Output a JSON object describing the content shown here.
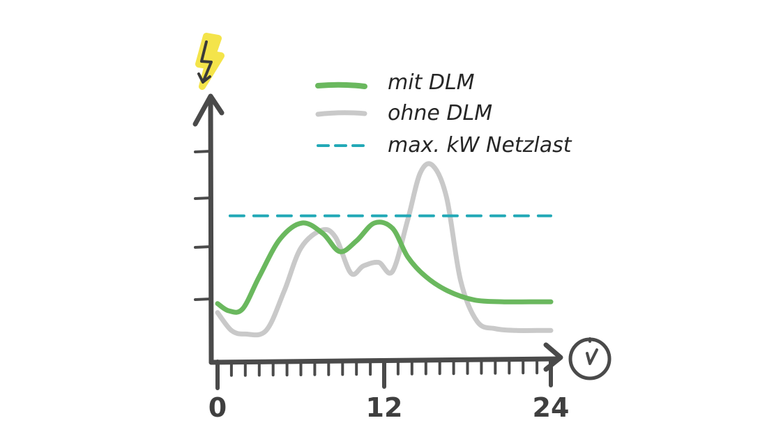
{
  "chart_data": {
    "type": "line",
    "title": "",
    "xlabel": "",
    "ylabel": "",
    "x_ticks": [
      "0",
      "12",
      "24"
    ],
    "xlim": [
      0,
      24
    ],
    "ylim": [
      0,
      7
    ],
    "legend_position": "top-right",
    "icons": {
      "y_axis": "lightning-bolt-icon",
      "x_axis": "clock-icon"
    },
    "series": [
      {
        "name": "mit DLM",
        "color": "#6ab85e",
        "x": [
          0,
          0.8,
          1.8,
          3,
          4.5,
          6.1,
          7.6,
          8.8,
          10,
          11.3,
          12.6,
          13.7,
          15,
          16.6,
          18.5,
          20.5,
          22.5,
          24
        ],
        "values": [
          1.25,
          1.05,
          1.1,
          2.0,
          3.05,
          3.5,
          3.2,
          2.7,
          3.0,
          3.5,
          3.35,
          2.55,
          2.0,
          1.6,
          1.35,
          1.3,
          1.3,
          1.3
        ]
      },
      {
        "name": "ohne DLM",
        "color": "#c9c9c9",
        "x": [
          0,
          1,
          2,
          3.5,
          4.8,
          6,
          7.5,
          8.5,
          9.6,
          10.5,
          11.6,
          12.6,
          13.7,
          14.6,
          15.5,
          16.5,
          17.5,
          18.7,
          20,
          21.5,
          23,
          24
        ],
        "values": [
          1.0,
          0.5,
          0.4,
          0.5,
          1.6,
          2.8,
          3.3,
          3.1,
          2.1,
          2.3,
          2.4,
          2.15,
          3.6,
          4.9,
          5.1,
          4.2,
          1.9,
          0.75,
          0.55,
          0.5,
          0.5,
          0.5
        ]
      },
      {
        "name": "max. kW Netzlast",
        "color": "#23a9b7",
        "dashed": true,
        "x": [
          0.9,
          24
        ],
        "values": [
          3.7,
          3.7
        ]
      }
    ]
  }
}
